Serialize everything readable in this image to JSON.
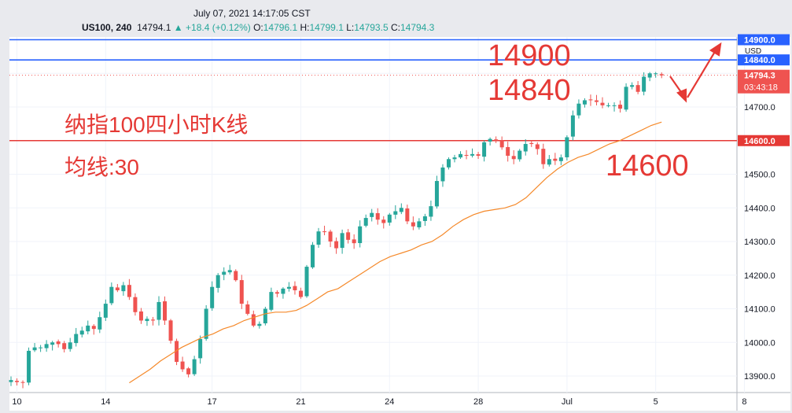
{
  "header": {
    "datetime": "July 07, 2021 14:17:05 CST",
    "symbol": "US100, 240",
    "last": "14794.1",
    "change": "▲ +18.4 (+0.12%)",
    "o_label": "O:",
    "o_val": "14796.1",
    "h_label": "H:",
    "h_val": "14799.1",
    "l_label": "L:",
    "l_val": "14793.5",
    "c_label": "C:",
    "c_val": "14794.3"
  },
  "currency": "USD",
  "annotations": {
    "title": "纳指100四小时K线",
    "ma_label": "均线:30",
    "level_14900": "14900",
    "level_14840": "14840",
    "level_14600": "14600"
  },
  "price_tags": {
    "h14900": "14900.0",
    "h14840": "14840.0",
    "last_price": "14794.3",
    "countdown": "03:43:18",
    "h14600": "14600.0"
  },
  "colors": {
    "up": "#26a69a",
    "down": "#ef5350",
    "ma": "#f5892a",
    "blue_line": "#2962ff",
    "red_line": "#e53935",
    "annotation": "#e53935"
  },
  "chart_data": {
    "type": "candlestick",
    "timeframe": "240",
    "symbol": "US100",
    "y_ticks": [
      13900,
      14000,
      14100,
      14200,
      14300,
      14400,
      14500,
      14600,
      14700,
      14800,
      14900
    ],
    "y_tick_labels": [
      "13900.0",
      "14000.0",
      "14100.0",
      "14200.0",
      "14300.0",
      "14400.0",
      "14500.0",
      "14600.0",
      "14700.0",
      "14800.0",
      "14900.0"
    ],
    "x_tick_labels": [
      {
        "label": "10",
        "index": 1
      },
      {
        "label": "14",
        "index": 16
      },
      {
        "label": "17",
        "index": 34
      },
      {
        "label": "21",
        "index": 49
      },
      {
        "label": "24",
        "index": 64
      },
      {
        "label": "28",
        "index": 79
      },
      {
        "label": "Jul",
        "index": 94
      },
      {
        "label": "5",
        "index": 109
      },
      {
        "label": "8",
        "index": 124
      }
    ],
    "horizontal_lines": [
      {
        "value": 14900,
        "color": "blue"
      },
      {
        "value": 14840,
        "color": "blue"
      },
      {
        "value": 14600,
        "color": "red"
      }
    ],
    "last_price": 14794.3,
    "closes": [
      13888,
      13882,
      13880,
      13975,
      13985,
      13985,
      13995,
      14000,
      13995,
      13980,
      14000,
      14025,
      14035,
      14050,
      14040,
      14075,
      14115,
      14165,
      14155,
      14170,
      14135,
      14090,
      14065,
      14070,
      14065,
      14120,
      14065,
      14005,
      13942,
      13920,
      13905,
      13950,
      14010,
      14100,
      14165,
      14200,
      14210,
      14215,
      14185,
      14115,
      14085,
      14050,
      14055,
      14100,
      14150,
      14145,
      14160,
      14165,
      14155,
      14135,
      14225,
      14290,
      14330,
      14330,
      14300,
      14280,
      14325,
      14305,
      14295,
      14345,
      14370,
      14385,
      14365,
      14355,
      14380,
      14390,
      14400,
      14360,
      14345,
      14360,
      14375,
      14405,
      14480,
      14520,
      14545,
      14550,
      14560,
      14555,
      14560,
      14555,
      14595,
      14605,
      14600,
      14580,
      14555,
      14545,
      14570,
      14590,
      14590,
      14575,
      14530,
      14545,
      14540,
      14550,
      14610,
      14675,
      14710,
      14720,
      14720,
      14715,
      14705,
      14705,
      14705,
      14695,
      14760,
      14765,
      14745,
      14790,
      14800,
      14800,
      14794
    ],
    "ma": {
      "period": 30,
      "values": [
        13880,
        13900,
        13920,
        13945,
        13965,
        13985,
        14000,
        14015,
        14025,
        14040,
        14050,
        14065,
        14075,
        14085,
        14090,
        14090,
        14095,
        14110,
        14130,
        14150,
        14160,
        14180,
        14200,
        14220,
        14240,
        14255,
        14265,
        14275,
        14290,
        14300,
        14320,
        14345,
        14365,
        14380,
        14390,
        14395,
        14400,
        14410,
        14430,
        14460,
        14490,
        14515,
        14535,
        14550,
        14560,
        14575,
        14590,
        14600,
        14615,
        14630,
        14645,
        14655
      ],
      "start_index": 20
    }
  }
}
